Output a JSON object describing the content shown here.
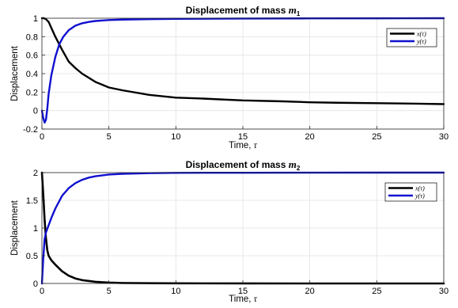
{
  "chart_data": [
    {
      "type": "line",
      "title": "Displacement of mass ",
      "title_math": "m",
      "title_sub": "1",
      "xlabel": "Time, ",
      "xlabel_math": "τ",
      "ylabel": "Displacement",
      "xlim": [
        0,
        30
      ],
      "ylim": [
        -0.2,
        1
      ],
      "xticks": [
        0,
        5,
        10,
        15,
        20,
        25,
        30
      ],
      "yticks": [
        -0.2,
        0,
        0.2,
        0.4,
        0.6,
        0.8,
        1
      ],
      "grid": true,
      "legend_position": "top-right",
      "series": [
        {
          "name": "x(τ)",
          "color": "#000000",
          "x": [
            0,
            0.15,
            0.3,
            0.5,
            0.75,
            1,
            1.5,
            2,
            2.5,
            3,
            4,
            5,
            6,
            8,
            10,
            12,
            15,
            18,
            20,
            22,
            25,
            28,
            30
          ],
          "y": [
            1,
            1,
            0.99,
            0.96,
            0.88,
            0.8,
            0.66,
            0.53,
            0.46,
            0.4,
            0.31,
            0.25,
            0.22,
            0.17,
            0.14,
            0.13,
            0.11,
            0.1,
            0.09,
            0.085,
            0.08,
            0.075,
            0.07
          ]
        },
        {
          "name": "y(τ)",
          "color": "#1010d0",
          "x": [
            0,
            0.1,
            0.2,
            0.3,
            0.4,
            0.5,
            0.7,
            1,
            1.3,
            1.6,
            2,
            2.5,
            3,
            3.5,
            4,
            5,
            6,
            8,
            10,
            15,
            20,
            25,
            30
          ],
          "y": [
            0,
            -0.08,
            -0.13,
            -0.1,
            0.02,
            0.18,
            0.38,
            0.58,
            0.72,
            0.8,
            0.87,
            0.92,
            0.945,
            0.96,
            0.97,
            0.98,
            0.985,
            0.99,
            0.993,
            0.996,
            0.998,
            0.999,
            1
          ]
        }
      ]
    },
    {
      "type": "line",
      "title": "Displacement of mass ",
      "title_math": "m",
      "title_sub": "2",
      "xlabel": "Time, ",
      "xlabel_math": "τ",
      "ylabel": "Displacement",
      "xlim": [
        0,
        30
      ],
      "ylim": [
        0,
        2
      ],
      "xticks": [
        0,
        5,
        10,
        15,
        20,
        25,
        30
      ],
      "yticks": [
        0,
        0.5,
        1,
        1.5,
        2
      ],
      "grid": true,
      "legend_position": "top-right",
      "series": [
        {
          "name": "x(τ)",
          "color": "#000000",
          "x": [
            0,
            0.1,
            0.2,
            0.3,
            0.4,
            0.5,
            0.7,
            1,
            1.5,
            2,
            2.5,
            3,
            4,
            5,
            6,
            8,
            10,
            15,
            20,
            25,
            30
          ],
          "y": [
            2,
            1.6,
            1.15,
            0.82,
            0.6,
            0.5,
            0.42,
            0.34,
            0.22,
            0.14,
            0.09,
            0.06,
            0.03,
            0.015,
            0.008,
            0.004,
            0.002,
            0.001,
            0,
            0,
            0
          ],
          "stroke": 2.6
        },
        {
          "name": "y(τ)",
          "color": "#1010d0",
          "x": [
            0,
            0.1,
            0.2,
            0.3,
            0.5,
            0.7,
            1,
            1.5,
            2,
            2.5,
            3,
            3.5,
            4,
            5,
            6,
            8,
            10,
            12,
            15,
            20,
            25,
            30
          ],
          "y": [
            0,
            0.45,
            0.8,
            0.92,
            1.05,
            1.18,
            1.35,
            1.58,
            1.72,
            1.81,
            1.87,
            1.91,
            1.935,
            1.965,
            1.978,
            1.99,
            1.995,
            1.997,
            1.998,
            1.999,
            2,
            2
          ]
        }
      ]
    }
  ]
}
